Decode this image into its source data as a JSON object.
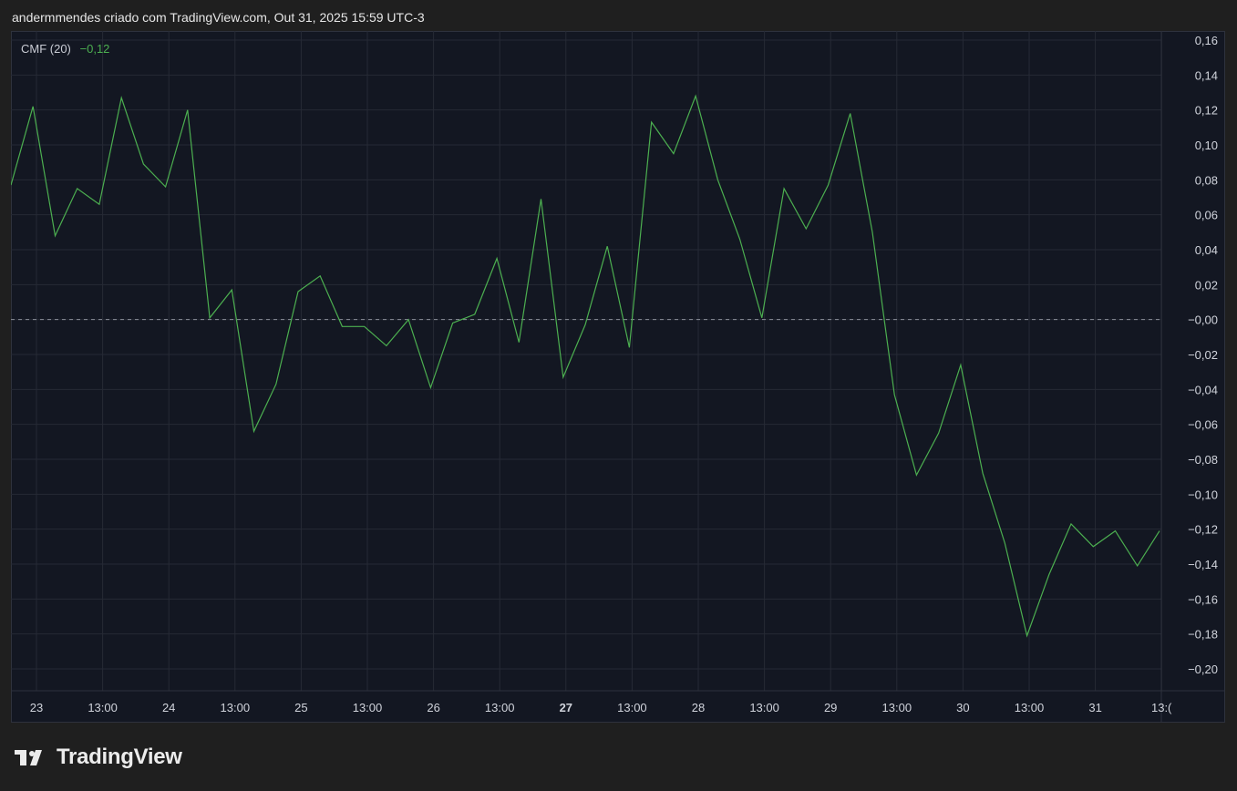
{
  "header": {
    "text": "andermmendes criado com TradingView.com, Out 31, 2025 15:59 UTC-3"
  },
  "legend": {
    "name": "CMF (20)",
    "value": "−0,12"
  },
  "brand": {
    "name": "TradingView"
  },
  "colors": {
    "line": "#4caf50",
    "background": "#131722",
    "grid": "#262a35",
    "zero_line": "#8a8e99"
  },
  "chart_data": {
    "type": "line",
    "series": [
      {
        "name": "CMF (20)",
        "values": [
          0.077,
          0.122,
          0.048,
          0.075,
          0.066,
          0.127,
          0.089,
          0.076,
          0.12,
          0.001,
          0.017,
          -0.064,
          -0.037,
          0.016,
          0.025,
          -0.004,
          -0.004,
          -0.015,
          0.0,
          -0.039,
          -0.002,
          0.003,
          0.035,
          -0.013,
          0.069,
          -0.033,
          -0.003,
          0.042,
          -0.016,
          0.113,
          0.095,
          0.128,
          0.08,
          0.046,
          0.001,
          0.075,
          0.052,
          0.077,
          0.118,
          0.05,
          -0.043,
          -0.089,
          -0.065,
          -0.026,
          -0.088,
          -0.128,
          -0.181,
          -0.146,
          -0.117,
          -0.13,
          -0.121,
          -0.141,
          -0.121
        ]
      }
    ],
    "x_tick_labels": [
      "23",
      "13:00",
      "24",
      "13:00",
      "25",
      "13:00",
      "26",
      "13:00",
      "27",
      "13:00",
      "28",
      "13:00",
      "29",
      "13:00",
      "30",
      "13:00",
      "31",
      "13:("
    ],
    "x_tick_bold": [
      false,
      false,
      false,
      false,
      false,
      false,
      false,
      false,
      true,
      false,
      false,
      false,
      false,
      false,
      false,
      false,
      false,
      false
    ],
    "y_ticks": [
      0.16,
      0.14,
      0.12,
      0.1,
      0.08,
      0.06,
      0.04,
      0.02,
      0.0,
      -0.02,
      -0.04,
      -0.06,
      -0.08,
      -0.1,
      -0.12,
      -0.14,
      -0.16,
      -0.18,
      -0.2
    ],
    "y_tick_labels": [
      "0,16",
      "0,14",
      "0,12",
      "0,10",
      "0,08",
      "0,06",
      "0,04",
      "0,02",
      "−0,00",
      "−0,02",
      "−0,04",
      "−0,06",
      "−0,08",
      "−0,10",
      "−0,12",
      "−0,14",
      "−0,16",
      "−0,18",
      "−0,20"
    ],
    "ylim": [
      -0.2,
      0.16
    ],
    "grid": true,
    "zero_line": "dashed"
  }
}
